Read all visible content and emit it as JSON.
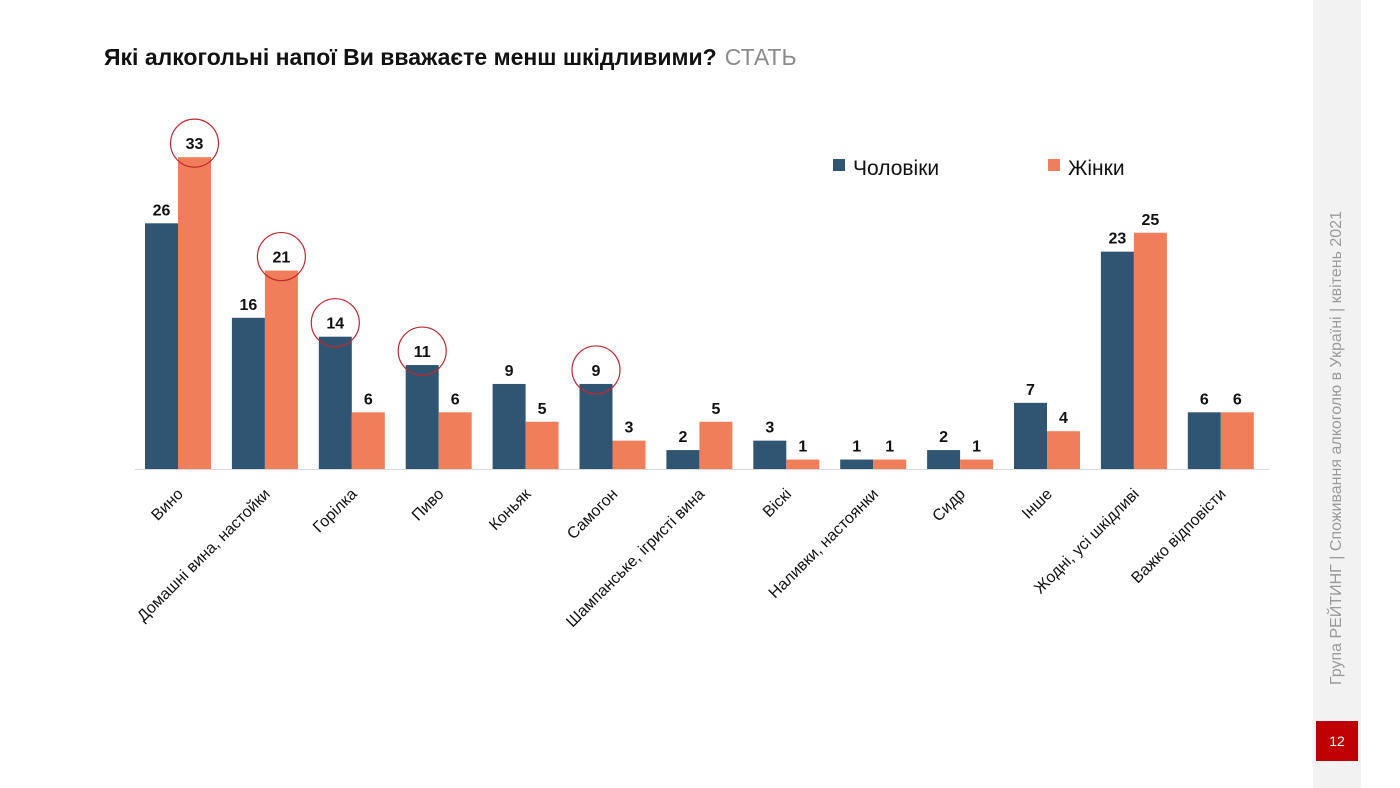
{
  "title": "Які алкогольні напої Ви вважаєте менш шкідливими?",
  "subtitle": "СТАТЬ",
  "side_text": "Група РЕЙТИНГ | Споживання алкоголю в Україні | квітень 2021",
  "page_number": "12",
  "colors": {
    "men": "#2f5573",
    "women": "#f07e5a",
    "highlight": "#c0272d",
    "axis": "#d9d9d9"
  },
  "chart_data": {
    "type": "bar",
    "title": "Які алкогольні напої Ви вважаєте менш шкідливими?",
    "subtitle": "СТАТЬ",
    "xlabel": "",
    "ylabel": "",
    "ylim": [
      0,
      35
    ],
    "grid": false,
    "legend_position": "top-right",
    "categories": [
      "Вино",
      "Домашні вина, настойки",
      "Горілка",
      "Пиво",
      "Коньяк",
      "Самогон",
      "Шампанське, ігристі вина",
      "Віскі",
      "Наливки, настоянки",
      "Сидр",
      "Інше",
      "Жодні, усі шкідливі",
      "Важко відповісти"
    ],
    "series": [
      {
        "name": "Чоловіки",
        "values": [
          26,
          16,
          14,
          11,
          9,
          9,
          2,
          3,
          1,
          2,
          7,
          23,
          6
        ]
      },
      {
        "name": "Жінки",
        "values": [
          33,
          21,
          6,
          6,
          5,
          3,
          5,
          1,
          1,
          1,
          4,
          25,
          6
        ]
      }
    ],
    "highlighted": [
      {
        "series": 1,
        "category": 0
      },
      {
        "series": 1,
        "category": 1
      },
      {
        "series": 0,
        "category": 2
      },
      {
        "series": 0,
        "category": 3
      },
      {
        "series": 0,
        "category": 5
      }
    ]
  }
}
